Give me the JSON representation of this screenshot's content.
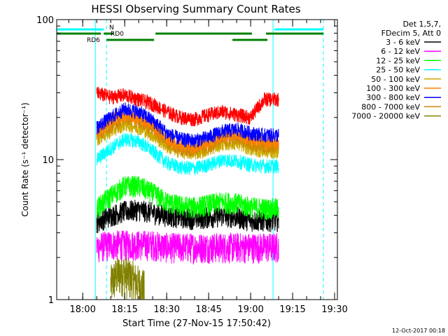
{
  "chart_data": {
    "type": "line",
    "title": "HESSI Observing Summary Count Rates",
    "xlabel": "Start Time (27-Nov-15 17:50:42)",
    "ylabel": "Count Rate (s⁻¹ detector⁻¹)",
    "x_scale": "time",
    "y_scale": "log",
    "xlim": [
      "17:50:42",
      "19:31:00"
    ],
    "ylim": [
      1,
      100
    ],
    "x_ticks": [
      "18:00",
      "18:15",
      "18:30",
      "18:45",
      "19:00",
      "19:15",
      "19:30"
    ],
    "y_ticks": [
      1,
      10,
      100
    ],
    "grid": false,
    "legend_placement": "right-outside",
    "legend_header": [
      "Det 1,5,7,",
      "FDecim 5, Att 0"
    ],
    "series": [
      {
        "name": "3 - 6 keV",
        "color": "#000000",
        "x": [
          "18:05",
          "18:10",
          "18:15",
          "18:20",
          "18:25",
          "18:30",
          "18:35",
          "18:40",
          "18:45",
          "18:50",
          "18:55",
          "19:00",
          "19:05",
          "19:10"
        ],
        "y": [
          3.6,
          4.0,
          4.3,
          4.4,
          4.2,
          4.0,
          3.9,
          3.8,
          3.9,
          4.0,
          3.9,
          3.7,
          3.7,
          3.7
        ]
      },
      {
        "name": "6 - 12 keV",
        "color": "#ff00ff",
        "x": [
          "18:05",
          "18:10",
          "18:15",
          "18:20",
          "18:25",
          "18:30",
          "18:35",
          "18:40",
          "18:45",
          "18:50",
          "18:55",
          "19:00",
          "19:05",
          "19:10"
        ],
        "y": [
          2.4,
          2.5,
          2.5,
          2.5,
          2.5,
          2.4,
          2.4,
          2.4,
          2.4,
          2.4,
          2.4,
          2.4,
          2.4,
          2.4
        ]
      },
      {
        "name": "12 - 25 keV",
        "color": "#00ff00",
        "x": [
          "18:05",
          "18:10",
          "18:15",
          "18:20",
          "18:25",
          "18:30",
          "18:35",
          "18:40",
          "18:45",
          "18:50",
          "18:55",
          "19:00",
          "19:05",
          "19:10"
        ],
        "y": [
          4.5,
          5.5,
          6.5,
          6.5,
          5.8,
          5.0,
          4.7,
          4.6,
          4.8,
          5.0,
          4.9,
          4.6,
          4.5,
          4.5
        ]
      },
      {
        "name": "25 - 50 keV",
        "color": "#00ffff",
        "x": [
          "18:05",
          "18:10",
          "18:15",
          "18:20",
          "18:25",
          "18:30",
          "18:35",
          "18:40",
          "18:45",
          "18:50",
          "18:55",
          "19:00",
          "19:05",
          "19:10"
        ],
        "y": [
          10,
          12,
          14,
          13.5,
          11.5,
          9.5,
          8.8,
          8.7,
          9.2,
          10,
          9.8,
          9.2,
          9,
          9
        ]
      },
      {
        "name": "50 - 100 keV",
        "color": "#ccaa00",
        "x": [
          "18:05",
          "18:10",
          "18:15",
          "18:20",
          "18:25",
          "18:30",
          "18:35",
          "18:40",
          "18:45",
          "18:50",
          "18:55",
          "19:00",
          "19:05",
          "19:10"
        ],
        "y": [
          14,
          16,
          18,
          17,
          15,
          12.5,
          11.5,
          11.2,
          12,
          13,
          13.2,
          12,
          11.5,
          11.5
        ]
      },
      {
        "name": "100 - 300 keV",
        "color": "#ff7f00",
        "x": [
          "18:05",
          "18:10",
          "18:15",
          "18:20",
          "18:25",
          "18:30",
          "18:35",
          "18:40",
          "18:45",
          "18:50",
          "18:55",
          "19:00",
          "19:05",
          "19:10"
        ],
        "y": [
          16,
          19,
          21,
          20,
          17.5,
          14,
          12.8,
          12.5,
          13.5,
          15,
          15.5,
          14,
          13.5,
          13.5
        ]
      },
      {
        "name": "300 - 800 keV",
        "color": "#0000ff",
        "x": [
          "18:05",
          "18:10",
          "18:15",
          "18:20",
          "18:25",
          "18:30",
          "18:35",
          "18:40",
          "18:45",
          "18:50",
          "18:55",
          "19:00",
          "19:05",
          "19:10"
        ],
        "y": [
          17,
          20,
          23,
          22,
          19,
          15.5,
          14,
          13.7,
          14.5,
          16,
          16.5,
          15.5,
          15,
          15
        ]
      },
      {
        "name": "800 - 7000 keV",
        "color": "#cc8800",
        "x": [
          "18:05",
          "18:10",
          "18:15",
          "18:20",
          "18:25",
          "18:30",
          "18:35",
          "18:40",
          "18:45",
          "18:50",
          "18:55",
          "19:00",
          "19:05",
          "19:10"
        ],
        "y": [
          15,
          17.5,
          20,
          19,
          16.5,
          13.5,
          12,
          11.8,
          12.6,
          13.8,
          14,
          13,
          12.6,
          12.6
        ]
      },
      {
        "name": "7000 - 20000 keV",
        "color": "#808000",
        "x": [
          "18:10",
          "18:12",
          "18:14",
          "18:16",
          "18:18",
          "18:20",
          "18:22"
        ],
        "y": [
          1.3,
          1.5,
          1.6,
          1.5,
          1.4,
          1.3,
          1.2
        ]
      },
      {
        "name": "",
        "color": "#ff0000",
        "x": [
          "18:05",
          "18:10",
          "18:15",
          "18:20",
          "18:25",
          "18:30",
          "18:35",
          "18:40",
          "18:45",
          "18:50",
          "18:55",
          "19:00",
          "19:05",
          "19:10"
        ],
        "y": [
          30,
          28,
          29,
          27,
          25,
          22,
          20,
          19.5,
          21,
          22,
          21,
          20,
          27,
          27
        ]
      }
    ],
    "flags": [
      {
        "label": "N",
        "color": "#00ffff",
        "segments": [
          [
            "17:50:42",
            "18:07:30"
          ],
          [
            "19:08:30",
            "19:26:00"
          ]
        ]
      },
      {
        "label": "RD0",
        "color": "#008000",
        "segments": [
          [
            "17:50:42",
            "18:06:30"
          ],
          [
            "18:07:30",
            "18:11:00"
          ],
          [
            "18:26:00",
            "19:00:30"
          ],
          [
            "19:05:30",
            "19:26:00"
          ]
        ]
      },
      {
        "label": "RD6",
        "color": "#008000",
        "segments": [
          [
            "18:08:30",
            "18:25:30"
          ],
          [
            "18:53:30",
            "19:06:00"
          ]
        ]
      }
    ],
    "vertical_markers": [
      {
        "x": "18:04:30",
        "color": "#00ffff",
        "style": "solid"
      },
      {
        "x": "18:08:30",
        "color": "#00ffff",
        "style": "dashed"
      },
      {
        "x": "19:08:00",
        "color": "#00ffff",
        "style": "solid"
      },
      {
        "x": "19:26:00",
        "color": "#00ffff",
        "style": "dashed"
      }
    ],
    "footer": "12-Oct-2017 00:18"
  }
}
